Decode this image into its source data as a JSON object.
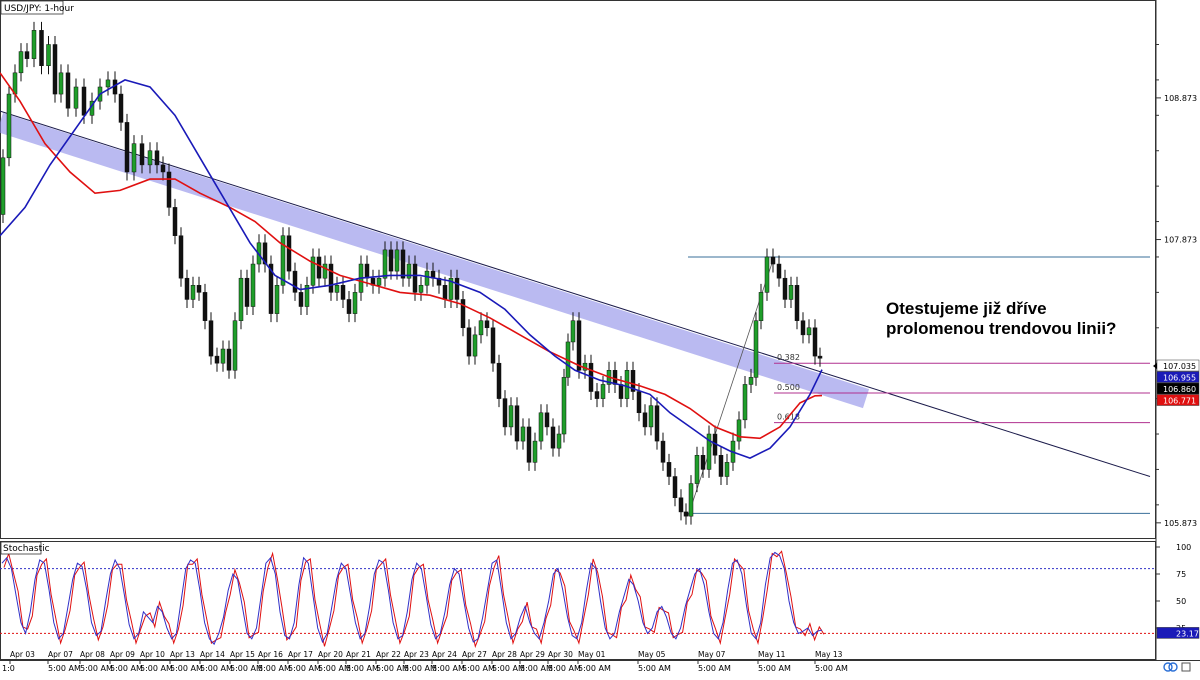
{
  "chart_data": {
    "type": "candlestick",
    "title": "USD/JPY: 1-hour",
    "instrument": "USD/JPY",
    "timeframe": "1-hour",
    "ylim": [
      105.78,
      109.55
    ],
    "y_ticks": [
      {
        "value": 108.873,
        "label": "108.873"
      },
      {
        "value": 107.873,
        "label": "107.873"
      },
      {
        "value": 105.873,
        "label": "105.873"
      }
    ],
    "price_labels": [
      {
        "value": 107.035,
        "label": "107.035",
        "color": "#ffffff",
        "text_color": "#000000"
      },
      {
        "value": 106.955,
        "label": "106.955",
        "color": "#1a1ab8",
        "text_color": "#ffffff"
      },
      {
        "value": 106.86,
        "label": "106.860",
        "color": "#000000",
        "text_color": "#ffffff"
      },
      {
        "value": 106.771,
        "label": "106.771",
        "color": "#e01010",
        "text_color": "#ffffff"
      }
    ],
    "x_date_labels": [
      "Apr 03",
      "Apr 07",
      "Apr 08",
      "Apr 09",
      "Apr 10",
      "Apr 13",
      "Apr 14",
      "Apr 15",
      "Apr 16",
      "Apr 17",
      "Apr 20",
      "Apr 21",
      "Apr 22",
      "Apr 23",
      "Apr 24",
      "Apr 27",
      "Apr 28",
      "Apr 29",
      "Apr 30",
      "May 01",
      "May 05",
      "May 07",
      "May 11",
      "May 13"
    ],
    "x_time_label": "5:00 AM",
    "x_first_time_label": "1:0",
    "price_path": [
      [
        0,
        108.05
      ],
      [
        6,
        108.45
      ],
      [
        12,
        108.9
      ],
      [
        18,
        109.05
      ],
      [
        24,
        109.2
      ],
      [
        30,
        109.15
      ],
      [
        38,
        109.35
      ],
      [
        45,
        109.1
      ],
      [
        52,
        109.25
      ],
      [
        58,
        108.9
      ],
      [
        64,
        109.05
      ],
      [
        72,
        108.8
      ],
      [
        80,
        108.95
      ],
      [
        88,
        108.75
      ],
      [
        96,
        108.85
      ],
      [
        104,
        108.95
      ],
      [
        112,
        109.0
      ],
      [
        118,
        108.9
      ],
      [
        124,
        108.7
      ],
      [
        130,
        108.35
      ],
      [
        138,
        108.55
      ],
      [
        146,
        108.4
      ],
      [
        154,
        108.5
      ],
      [
        160,
        108.4
      ],
      [
        166,
        108.35
      ],
      [
        172,
        108.1
      ],
      [
        178,
        107.9
      ],
      [
        184,
        107.6
      ],
      [
        190,
        107.45
      ],
      [
        196,
        107.55
      ],
      [
        202,
        107.5
      ],
      [
        208,
        107.3
      ],
      [
        214,
        107.05
      ],
      [
        220,
        107.0
      ],
      [
        226,
        107.1
      ],
      [
        232,
        106.95
      ],
      [
        238,
        107.3
      ],
      [
        244,
        107.6
      ],
      [
        250,
        107.4
      ],
      [
        256,
        107.7
      ],
      [
        262,
        107.85
      ],
      [
        268,
        107.7
      ],
      [
        274,
        107.35
      ],
      [
        280,
        107.55
      ],
      [
        286,
        107.9
      ],
      [
        292,
        107.65
      ],
      [
        298,
        107.5
      ],
      [
        304,
        107.4
      ],
      [
        310,
        107.55
      ],
      [
        316,
        107.75
      ],
      [
        322,
        107.6
      ],
      [
        328,
        107.7
      ],
      [
        334,
        107.5
      ],
      [
        340,
        107.55
      ],
      [
        346,
        107.45
      ],
      [
        352,
        107.35
      ],
      [
        358,
        107.5
      ],
      [
        364,
        107.7
      ],
      [
        370,
        107.6
      ],
      [
        376,
        107.55
      ],
      [
        382,
        107.6
      ],
      [
        388,
        107.8
      ],
      [
        394,
        107.65
      ],
      [
        400,
        107.8
      ],
      [
        406,
        107.6
      ],
      [
        412,
        107.7
      ],
      [
        418,
        107.5
      ],
      [
        424,
        107.55
      ],
      [
        430,
        107.65
      ],
      [
        436,
        107.6
      ],
      [
        442,
        107.55
      ],
      [
        448,
        107.45
      ],
      [
        454,
        107.6
      ],
      [
        460,
        107.45
      ],
      [
        466,
        107.25
      ],
      [
        472,
        107.05
      ],
      [
        478,
        107.2
      ],
      [
        484,
        107.3
      ],
      [
        490,
        107.25
      ],
      [
        496,
        107.0
      ],
      [
        502,
        106.75
      ],
      [
        508,
        106.55
      ],
      [
        514,
        106.7
      ],
      [
        520,
        106.45
      ],
      [
        526,
        106.55
      ],
      [
        532,
        106.3
      ],
      [
        538,
        106.45
      ],
      [
        544,
        106.65
      ],
      [
        550,
        106.55
      ],
      [
        556,
        106.4
      ],
      [
        562,
        106.5
      ],
      [
        566,
        106.9
      ],
      [
        570,
        107.15
      ],
      [
        576,
        107.3
      ],
      [
        582,
        106.95
      ],
      [
        588,
        107.0
      ],
      [
        594,
        106.8
      ],
      [
        600,
        106.75
      ],
      [
        606,
        106.85
      ],
      [
        612,
        106.95
      ],
      [
        618,
        106.85
      ],
      [
        624,
        106.75
      ],
      [
        630,
        106.95
      ],
      [
        636,
        106.8
      ],
      [
        642,
        106.65
      ],
      [
        648,
        106.55
      ],
      [
        654,
        106.7
      ],
      [
        660,
        106.45
      ],
      [
        666,
        106.3
      ],
      [
        672,
        106.2
      ],
      [
        678,
        106.05
      ],
      [
        684,
        105.95
      ],
      [
        688,
        105.92
      ],
      [
        694,
        106.15
      ],
      [
        700,
        106.35
      ],
      [
        706,
        106.25
      ],
      [
        712,
        106.5
      ],
      [
        718,
        106.35
      ],
      [
        724,
        106.2
      ],
      [
        730,
        106.3
      ],
      [
        736,
        106.45
      ],
      [
        742,
        106.6
      ],
      [
        748,
        106.85
      ],
      [
        754,
        106.9
      ],
      [
        758,
        107.3
      ],
      [
        764,
        107.5
      ],
      [
        770,
        107.75
      ],
      [
        776,
        107.7
      ],
      [
        782,
        107.6
      ],
      [
        788,
        107.45
      ],
      [
        794,
        107.55
      ],
      [
        800,
        107.3
      ],
      [
        806,
        107.2
      ],
      [
        812,
        107.25
      ],
      [
        818,
        107.05
      ],
      [
        822,
        107.035
      ]
    ],
    "moving_averages": [
      {
        "color": "#e01010",
        "points": [
          [
            0,
            109.05
          ],
          [
            20,
            108.85
          ],
          [
            45,
            108.55
          ],
          [
            70,
            108.35
          ],
          [
            95,
            108.2
          ],
          [
            120,
            108.22
          ],
          [
            150,
            108.3
          ],
          [
            175,
            108.3
          ],
          [
            200,
            108.2
          ],
          [
            230,
            108.1
          ],
          [
            255,
            108.0
          ],
          [
            280,
            107.85
          ],
          [
            310,
            107.72
          ],
          [
            340,
            107.62
          ],
          [
            370,
            107.56
          ],
          [
            400,
            107.5
          ],
          [
            430,
            107.48
          ],
          [
            460,
            107.42
          ],
          [
            490,
            107.32
          ],
          [
            520,
            107.2
          ],
          [
            550,
            107.08
          ],
          [
            580,
            106.98
          ],
          [
            610,
            106.9
          ],
          [
            640,
            106.84
          ],
          [
            665,
            106.78
          ],
          [
            690,
            106.68
          ],
          [
            715,
            106.55
          ],
          [
            740,
            106.48
          ],
          [
            760,
            106.47
          ],
          [
            780,
            106.55
          ],
          [
            800,
            106.72
          ],
          [
            815,
            106.77
          ],
          [
            822,
            106.771
          ]
        ]
      },
      {
        "color": "#1a1ab8",
        "points": [
          [
            0,
            107.9
          ],
          [
            25,
            108.1
          ],
          [
            50,
            108.4
          ],
          [
            75,
            108.65
          ],
          [
            100,
            108.9
          ],
          [
            125,
            109.0
          ],
          [
            150,
            108.95
          ],
          [
            175,
            108.75
          ],
          [
            200,
            108.45
          ],
          [
            225,
            108.15
          ],
          [
            250,
            107.85
          ],
          [
            275,
            107.62
          ],
          [
            300,
            107.52
          ],
          [
            330,
            107.55
          ],
          [
            360,
            107.6
          ],
          [
            390,
            107.62
          ],
          [
            420,
            107.62
          ],
          [
            450,
            107.58
          ],
          [
            480,
            107.5
          ],
          [
            505,
            107.38
          ],
          [
            530,
            107.2
          ],
          [
            555,
            107.05
          ],
          [
            575,
            106.95
          ],
          [
            600,
            106.88
          ],
          [
            625,
            106.84
          ],
          [
            650,
            106.78
          ],
          [
            670,
            106.65
          ],
          [
            690,
            106.55
          ],
          [
            710,
            106.45
          ],
          [
            730,
            106.38
          ],
          [
            750,
            106.33
          ],
          [
            770,
            106.4
          ],
          [
            790,
            106.55
          ],
          [
            810,
            106.78
          ],
          [
            822,
            106.955
          ]
        ]
      }
    ],
    "trendline_channel": {
      "from": [
        0,
        108.7
      ],
      "to": [
        866,
        106.75
      ]
    },
    "trendline": {
      "from": [
        0,
        108.78
      ],
      "to": [
        1150,
        106.2
      ]
    },
    "swing_line": {
      "from": [
        688,
        105.92
      ],
      "to": [
        774,
        107.75
      ]
    },
    "horizontal_lines": [
      {
        "value": 107.75,
        "x1": 688,
        "x2": 1150
      },
      {
        "value": 105.94,
        "x1": 688,
        "x2": 1150
      }
    ],
    "fibonacci_levels": [
      {
        "label": "0.382",
        "value": 107.0
      },
      {
        "label": "0.500",
        "value": 106.79
      },
      {
        "label": "0.618",
        "value": 106.58
      }
    ],
    "annotation": {
      "line1": "Otestujeme již dříve",
      "line2": "prolomenou trendovou linii?"
    },
    "stochastic": {
      "title": "Stochastic",
      "ylim": [
        0,
        100
      ],
      "ticks": [
        "100",
        "75",
        "50",
        "25"
      ],
      "upper_level": 80,
      "lower_level": 20,
      "last_label": "23.17",
      "values": [
        85,
        90,
        80,
        55,
        30,
        20,
        40,
        70,
        88,
        85,
        60,
        30,
        15,
        20,
        45,
        70,
        85,
        82,
        60,
        30,
        18,
        22,
        50,
        75,
        88,
        80,
        55,
        28,
        15,
        20,
        40,
        35,
        30,
        45,
        40,
        25,
        15,
        20,
        50,
        80,
        88,
        85,
        60,
        30,
        15,
        10,
        20,
        35,
        60,
        75,
        70,
        45,
        20,
        15,
        25,
        55,
        85,
        90,
        75,
        40,
        18,
        15,
        30,
        65,
        90,
        85,
        55,
        25,
        12,
        20,
        45,
        70,
        85,
        80,
        55,
        30,
        15,
        20,
        45,
        75,
        88,
        85,
        60,
        30,
        15,
        18,
        40,
        70,
        85,
        80,
        55,
        28,
        15,
        20,
        40,
        65,
        80,
        75,
        50,
        25,
        12,
        15,
        35,
        60,
        85,
        88,
        60,
        30,
        15,
        20,
        35,
        45,
        30,
        20,
        15,
        30,
        50,
        75,
        80,
        60,
        35,
        18,
        15,
        30,
        60,
        85,
        80,
        50,
        25,
        15,
        20,
        40,
        55,
        70,
        65,
        50,
        30,
        20,
        25,
        40,
        45,
        35,
        20,
        15,
        25,
        45,
        60,
        75,
        80,
        65,
        40,
        20,
        15,
        30,
        60,
        85,
        88,
        75,
        45,
        20,
        15,
        30,
        65,
        90,
        95,
        92,
        80,
        50,
        30,
        20,
        22,
        25,
        18,
        22,
        23.17
      ]
    }
  }
}
